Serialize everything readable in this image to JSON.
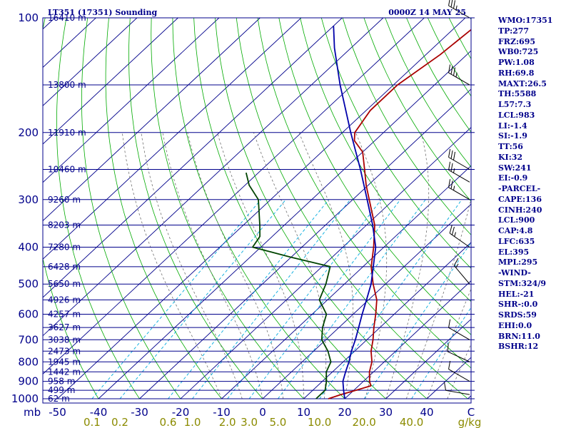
{
  "header": {
    "station": "LT351 (17351) Sounding",
    "valid_time": "0000Z 14 MAY 25"
  },
  "chart_data": {
    "type": "line",
    "diagram": "skew-T log-P",
    "pressure_levels": [
      {
        "p": 100,
        "label": "100",
        "height": "16410 m"
      },
      {
        "p": 150,
        "label": "",
        "height": "13800 m"
      },
      {
        "p": 200,
        "label": "200",
        "height": "11910 m"
      },
      {
        "p": 250,
        "label": "",
        "height": "10460 m"
      },
      {
        "p": 300,
        "label": "300",
        "height": "9260 m"
      },
      {
        "p": 350,
        "label": "",
        "height": "8203 m"
      },
      {
        "p": 400,
        "label": "400",
        "height": "7280 m"
      },
      {
        "p": 450,
        "label": "",
        "height": "6428 m"
      },
      {
        "p": 500,
        "label": "500",
        "height": "5650 m"
      },
      {
        "p": 550,
        "label": "",
        "height": "4926 m"
      },
      {
        "p": 600,
        "label": "600",
        "height": "4257 m"
      },
      {
        "p": 650,
        "label": "",
        "height": "3627 m"
      },
      {
        "p": 700,
        "label": "700",
        "height": "3038 m"
      },
      {
        "p": 750,
        "label": "",
        "height": "2473 m"
      },
      {
        "p": 800,
        "label": "800",
        "height": "1945 m"
      },
      {
        "p": 850,
        "label": "",
        "height": "1442 m"
      },
      {
        "p": 900,
        "label": "900",
        "height": "958 m"
      },
      {
        "p": 950,
        "label": "",
        "height": "499 m"
      },
      {
        "p": 1000,
        "label": "1000",
        "height": "62 m"
      }
    ],
    "pressure_unit": "mb",
    "temperature_ticks": [
      "-50",
      "-40",
      "-30",
      "-20",
      "-10",
      "0",
      "10",
      "20",
      "30",
      "40"
    ],
    "temperature_axis_end_label": "C",
    "mixing_ratio_ticks": [
      "0.1",
      "0.2",
      "0.6",
      "1.0",
      "2.0",
      "3.0",
      "5.0",
      "10.0",
      "20.0",
      "40.0"
    ],
    "mixing_ratio_unit": "g/kg",
    "series": [
      {
        "key": "temperature",
        "points": [
          [
            1000,
            16
          ],
          [
            975,
            18
          ],
          [
            950,
            20.5
          ],
          [
            925,
            23
          ],
          [
            900,
            21.5
          ],
          [
            850,
            19
          ],
          [
            800,
            17
          ],
          [
            750,
            14
          ],
          [
            700,
            11.5
          ],
          [
            650,
            8.5
          ],
          [
            600,
            5.5
          ],
          [
            550,
            2
          ],
          [
            500,
            -3
          ],
          [
            450,
            -8
          ],
          [
            400,
            -12.5
          ],
          [
            350,
            -18
          ],
          [
            300,
            -26
          ],
          [
            275,
            -30.5
          ],
          [
            250,
            -35
          ],
          [
            225,
            -40
          ],
          [
            210,
            -45
          ],
          [
            200,
            -47
          ],
          [
            175,
            -49
          ],
          [
            150,
            -49
          ],
          [
            125,
            -46.5
          ],
          [
            100,
            -45
          ]
        ]
      },
      {
        "key": "dewpoint",
        "points": [
          [
            1000,
            13
          ],
          [
            950,
            13
          ],
          [
            900,
            11
          ],
          [
            850,
            8.5
          ],
          [
            800,
            7
          ],
          [
            750,
            3.5
          ],
          [
            700,
            -1
          ],
          [
            650,
            -4
          ],
          [
            600,
            -6.5
          ],
          [
            550,
            -12
          ],
          [
            500,
            -14.5
          ],
          [
            450,
            -18
          ],
          [
            425,
            -30
          ],
          [
            400,
            -42
          ],
          [
            375,
            -43
          ],
          [
            350,
            -46
          ],
          [
            300,
            -53
          ],
          [
            275,
            -59
          ],
          [
            255,
            -63
          ]
        ]
      },
      {
        "key": "parcel",
        "points": [
          [
            1000,
            20
          ],
          [
            950,
            17.5
          ],
          [
            900,
            15
          ],
          [
            850,
            13.2
          ],
          [
            800,
            11.4
          ],
          [
            750,
            9.2
          ],
          [
            700,
            7.2
          ],
          [
            650,
            4.8
          ],
          [
            600,
            2.2
          ],
          [
            550,
            -0.5
          ],
          [
            500,
            -3.5
          ],
          [
            450,
            -7.5
          ],
          [
            400,
            -12
          ],
          [
            350,
            -18.5
          ],
          [
            300,
            -26.5
          ],
          [
            250,
            -36
          ],
          [
            200,
            -48
          ],
          [
            150,
            -63
          ],
          [
            120,
            -74
          ],
          [
            105,
            -80
          ]
        ]
      }
    ],
    "wind_barbs": [
      {
        "p": 975,
        "dir": 280,
        "kt": 10
      },
      {
        "p": 900,
        "dir": 300,
        "kt": 10
      },
      {
        "p": 800,
        "dir": 295,
        "kt": 12
      },
      {
        "p": 700,
        "dir": 300,
        "kt": 10
      },
      {
        "p": 500,
        "dir": 320,
        "kt": 15
      },
      {
        "p": 400,
        "dir": 305,
        "kt": 25
      },
      {
        "p": 300,
        "dir": 300,
        "kt": 25
      },
      {
        "p": 270,
        "dir": 300,
        "kt": 25
      },
      {
        "p": 250,
        "dir": 300,
        "kt": 30
      },
      {
        "p": 150,
        "dir": 300,
        "kt": 35
      },
      {
        "p": 100,
        "dir": 300,
        "kt": 35
      }
    ]
  },
  "indices": [
    "WMO:17351",
    "TP:277",
    "FRZ:695",
    "WB0:725",
    "PW:1.08",
    "RH:69.8",
    "MAXT:26.5",
    "TH:5588",
    "L57:7.3",
    "LCL:983",
    "LI:-1.4",
    "SI:-1.9",
    "TT:56",
    "KI:32",
    "SW:241",
    "EI:-0.9",
    "-PARCEL-",
    "CAPE:136",
    "CINH:240",
    "LCL:900",
    "CAP:4.8",
    "LFC:635",
    "EL:395",
    "MPL:295",
    "-WIND-",
    "STM:324/9",
    "HEL:-21",
    "SHR-:0.0",
    "SRDS:59",
    "EHI:0.0",
    "BRN:11.0",
    "BSHR:12"
  ],
  "colors": {
    "frame": "#00008b",
    "isobar": "#00008b",
    "isotherm": "#00008b",
    "dry_adiabat": "#00aa00",
    "moist_adiabat": "#707070",
    "mixing_ratio": "#00aadd",
    "temperature": "#aa0000",
    "dewpoint": "#004400",
    "parcel": "#0000aa",
    "wind_barb": "#000000",
    "mixing_label": "#8b8b00"
  }
}
